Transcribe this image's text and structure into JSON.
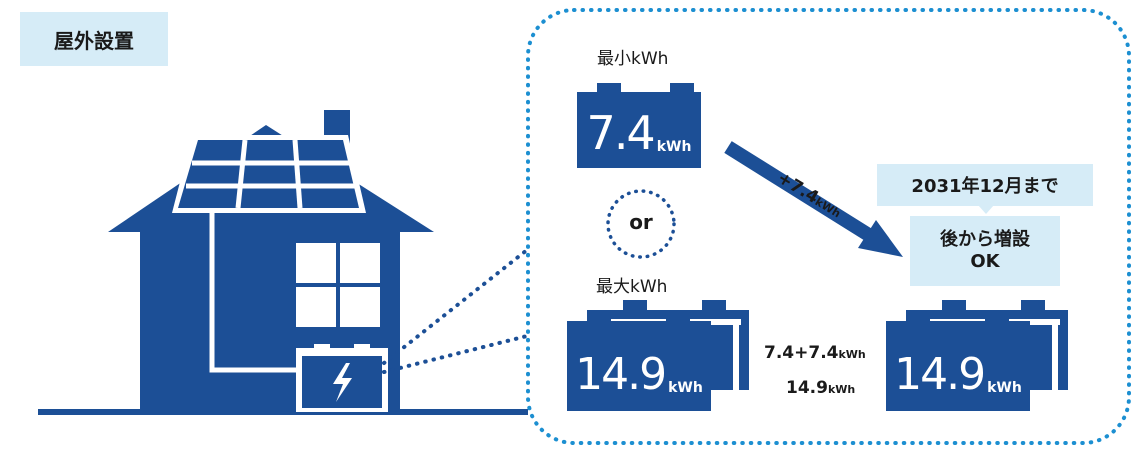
{
  "tag": {
    "label": "屋外設置"
  },
  "min": {
    "label": "最小kWh",
    "value": "7.4",
    "unit": "kWh"
  },
  "or_label": "or",
  "max": {
    "label": "最大kWh",
    "value": "14.9",
    "unit": "kWh"
  },
  "sum": {
    "line1_value": "7.4+7.4",
    "line1_unit": "kWh",
    "line2_value": "14.9",
    "line2_unit": "kWh"
  },
  "arrow": {
    "value": "+7.4",
    "unit": "kWh"
  },
  "callout": {
    "date": "2031年12月まで",
    "line1": "後から増設",
    "line2": "OK"
  },
  "result": {
    "value": "14.9",
    "unit": "kWh"
  },
  "colors": {
    "primary": "#1c4f96",
    "light": "#d6ecf7"
  }
}
